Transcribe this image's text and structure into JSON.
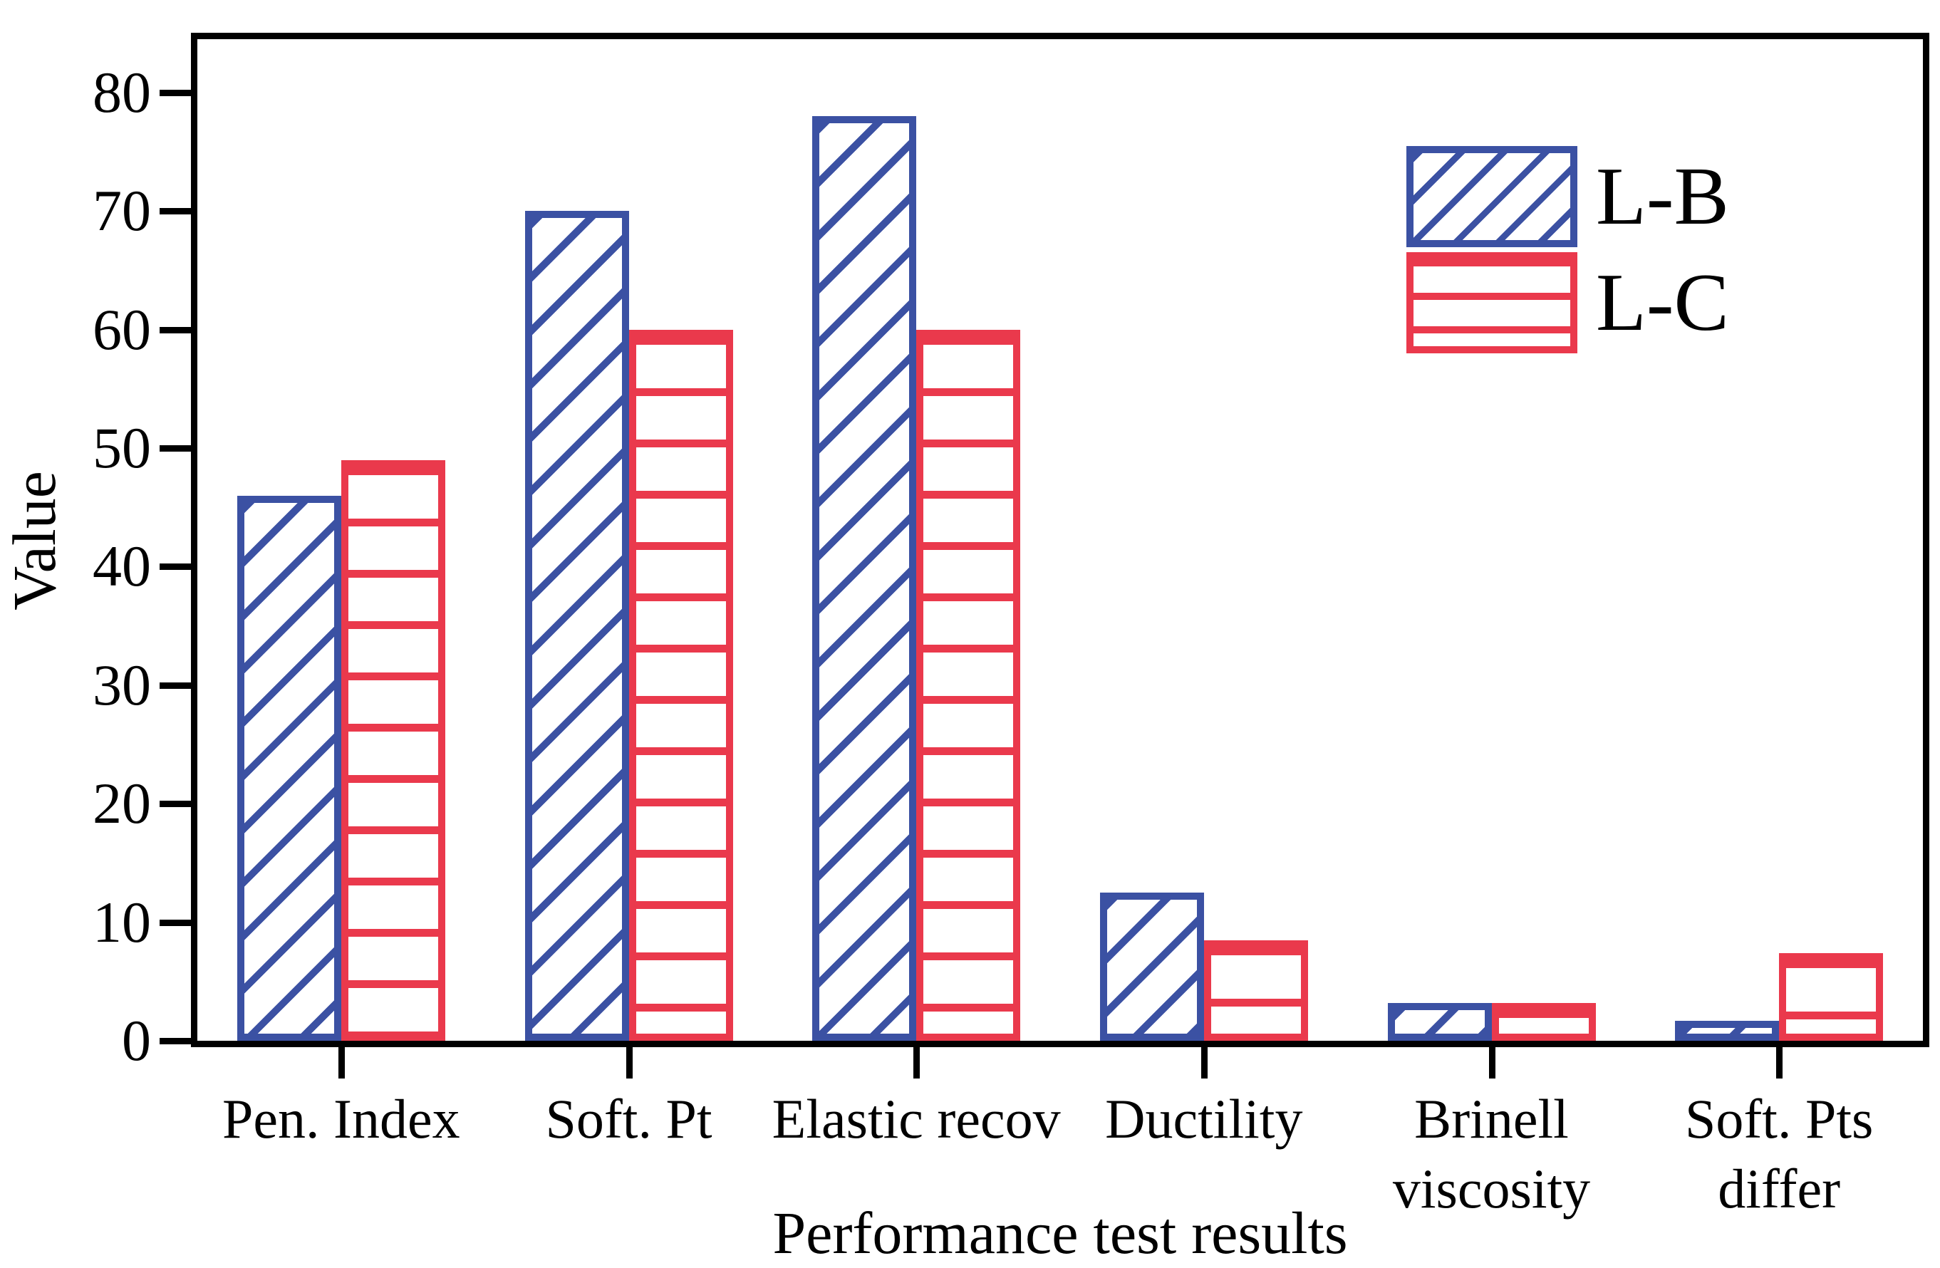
{
  "chart_data": {
    "type": "bar",
    "title": "",
    "xlabel": "Performance test results",
    "ylabel": "Value",
    "categories": [
      "Pen. Index",
      "Soft. Pt",
      "Elastic recov",
      "Ductility",
      "Brinell\nviscosity",
      "Soft. Pts\ndiffer"
    ],
    "series": [
      {
        "name": "L-B",
        "color": "#3b51a3",
        "hatch": "diagonal",
        "values": [
          46,
          70,
          78,
          12.5,
          3.2,
          1.7
        ]
      },
      {
        "name": "L-C",
        "color": "#ea394c",
        "hatch": "horizontal",
        "values": [
          49,
          60,
          60,
          8.5,
          3.2,
          7.4
        ]
      }
    ],
    "yticks": [
      0,
      10,
      20,
      30,
      40,
      50,
      60,
      70,
      80
    ],
    "ylim": [
      0,
      84.5
    ],
    "grid": false,
    "legend_position": "upper-right",
    "axis_color": "#000000",
    "background_color": "#ffffff"
  }
}
